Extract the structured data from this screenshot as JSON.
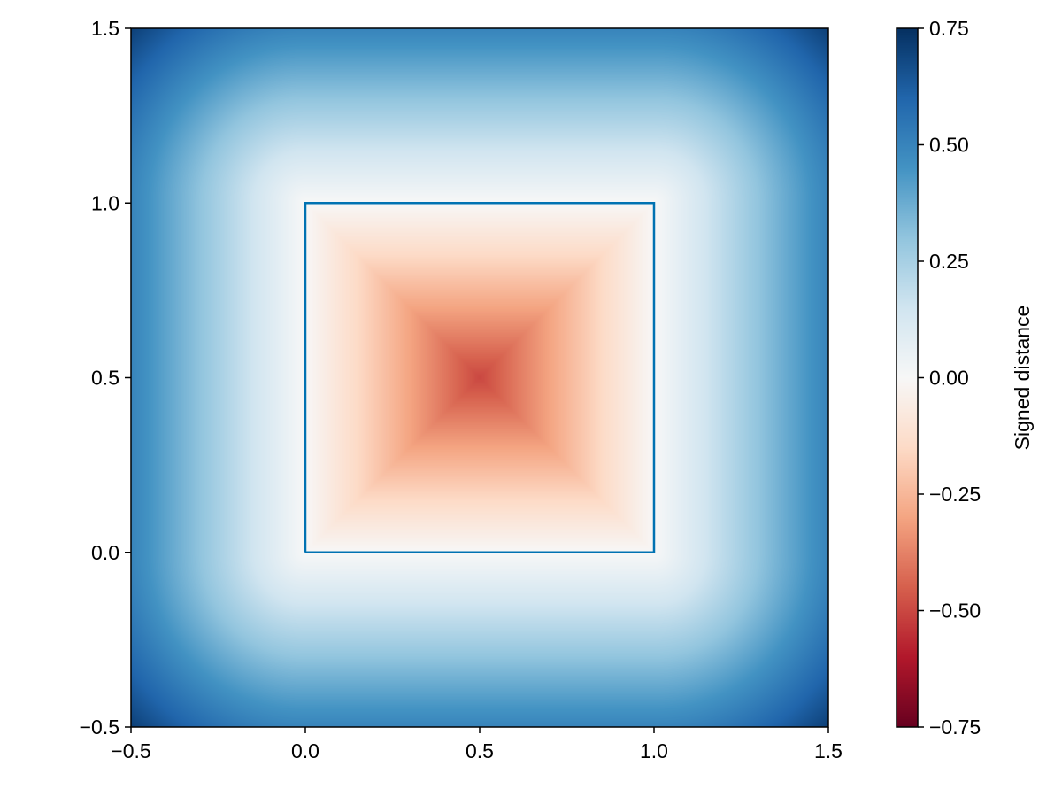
{
  "chart_data": {
    "type": "heatmap",
    "title": "",
    "xlabel": "",
    "ylabel": "",
    "xlim": [
      -0.5,
      1.5
    ],
    "ylim": [
      -0.5,
      1.5
    ],
    "x_ticks": [
      "−0.5",
      "0.0",
      "0.5",
      "1.0",
      "1.5"
    ],
    "x_tick_values": [
      -0.5,
      0,
      0.5,
      1,
      1.5
    ],
    "y_ticks": [
      "−0.5",
      "0.0",
      "0.5",
      "1.0",
      "1.5"
    ],
    "y_tick_values": [
      -0.5,
      0,
      0.5,
      1,
      1.5
    ],
    "field": "signed distance to the square [0,1]×[0,1] (negative inside)",
    "grid": false,
    "colorbar": {
      "label": "Signed distance",
      "range": [
        -0.75,
        0.75
      ],
      "colormap": "RdBu",
      "ticks": [
        "−0.75",
        "−0.50",
        "−0.25",
        "0.00",
        "0.25",
        "0.50",
        "0.75"
      ],
      "tick_values": [
        -0.75,
        -0.5,
        -0.25,
        0,
        0.25,
        0.5,
        0.75
      ],
      "colors": [
        "#67001f",
        "#b2182b",
        "#d6604d",
        "#f4a582",
        "#fddbc7",
        "#f7f7f7",
        "#d1e5f0",
        "#92c5de",
        "#4393c3",
        "#2166ac",
        "#053061"
      ]
    },
    "outline": {
      "x": [
        0,
        1,
        1,
        0,
        0
      ],
      "y": [
        0,
        0,
        1,
        1,
        0
      ],
      "color": "#0072b2"
    }
  }
}
